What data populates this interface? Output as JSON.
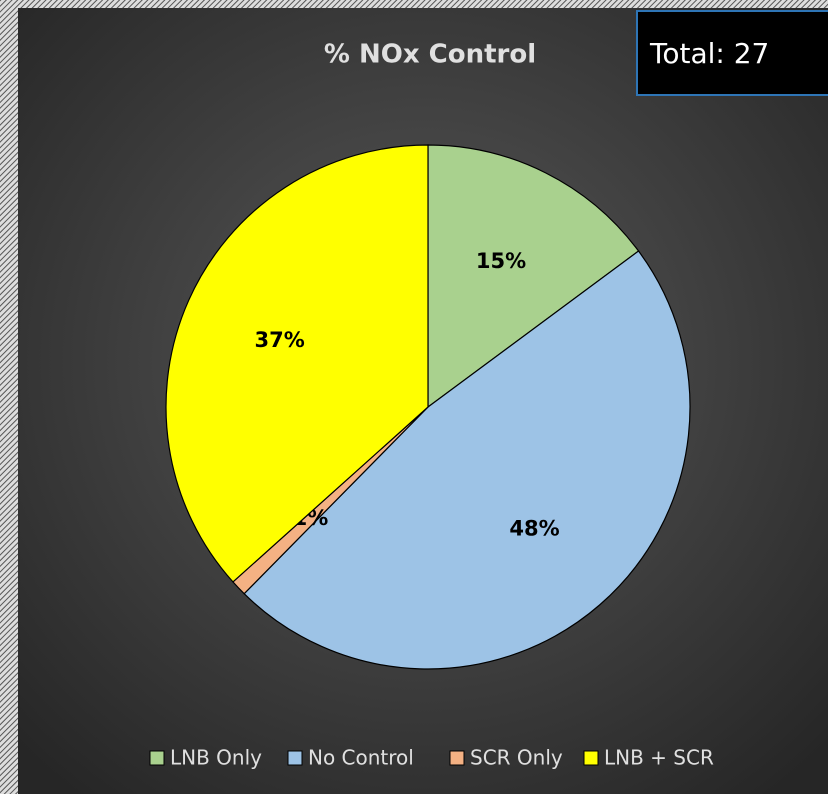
{
  "chart_data": {
    "type": "pie",
    "title": "% NOx Control",
    "annotation": "Total: 27",
    "categories": [
      "LNB Only",
      "No Control",
      "SCR Only",
      "LNB + SCR"
    ],
    "values": [
      15,
      48,
      1,
      37
    ],
    "value_labels": [
      "15%",
      "48%",
      "1%",
      "37%"
    ],
    "colors": [
      "#a9d18e",
      "#9dc3e6",
      "#f4b183",
      "#ffff00"
    ],
    "legend": "bottom"
  }
}
